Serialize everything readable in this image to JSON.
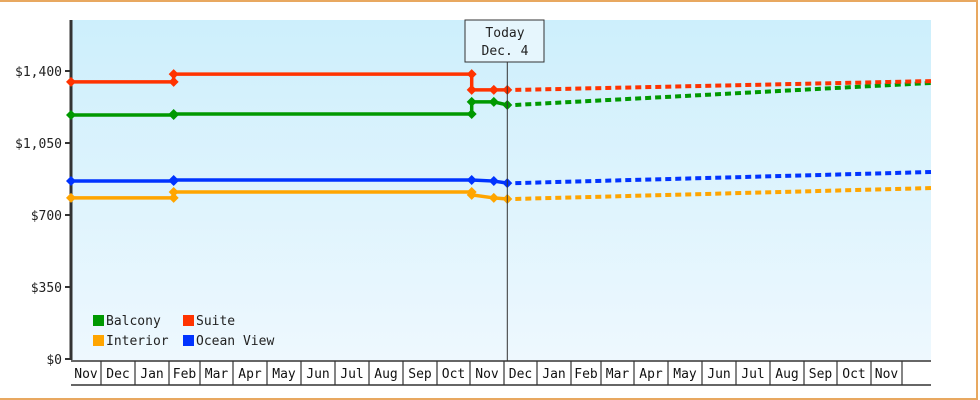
{
  "chart_data": {
    "type": "line",
    "title": "",
    "xlabel": "",
    "ylabel": "",
    "ylim": [
      0,
      1700
    ],
    "y_ticks": [
      {
        "value": 0,
        "label": "$0"
      },
      {
        "value": 350,
        "label": "$350"
      },
      {
        "value": 700,
        "label": "$700"
      },
      {
        "value": 1050,
        "label": "$1,050"
      },
      {
        "value": 1400,
        "label": "$1,400"
      }
    ],
    "x_months": [
      "Nov",
      "Dec",
      "Jan",
      "Feb",
      "Mar",
      "Apr",
      "May",
      "Jun",
      "Jul",
      "Aug",
      "Sep",
      "Oct",
      "Nov",
      "Dec",
      "Jan",
      "Feb",
      "Mar",
      "Apr",
      "May",
      "Jun",
      "Jul",
      "Aug",
      "Sep",
      "Oct",
      "Nov"
    ],
    "today_marker": {
      "line1": "Today",
      "line2": "Dec. 4",
      "month_index": 13.1
    },
    "legend_position": "lower-left",
    "grid": false,
    "series": [
      {
        "name": "Balcony",
        "color": "#009900",
        "historical": [
          [
            0,
            1186
          ],
          [
            3.15,
            1186
          ],
          [
            3.15,
            1191
          ],
          [
            12.05,
            1191
          ],
          [
            12.05,
            1250
          ],
          [
            12.7,
            1250
          ],
          [
            13.1,
            1235
          ]
        ],
        "projected": [
          [
            13.1,
            1235
          ],
          [
            25.8,
            1342
          ]
        ]
      },
      {
        "name": "Suite",
        "color": "#ff3300",
        "historical": [
          [
            0,
            1347
          ],
          [
            3.15,
            1347
          ],
          [
            3.15,
            1385
          ],
          [
            12.05,
            1385
          ],
          [
            12.05,
            1308
          ],
          [
            12.7,
            1308
          ],
          [
            13.1,
            1308
          ]
        ],
        "projected": [
          [
            13.1,
            1308
          ],
          [
            25.8,
            1351
          ]
        ]
      },
      {
        "name": "Interior",
        "color": "#ffa500",
        "historical": [
          [
            0,
            783
          ],
          [
            3.15,
            783
          ],
          [
            3.15,
            812
          ],
          [
            12.05,
            812
          ],
          [
            12.05,
            798
          ],
          [
            12.7,
            783
          ],
          [
            13.1,
            778
          ]
        ],
        "projected": [
          [
            13.1,
            778
          ],
          [
            25.8,
            831
          ]
        ]
      },
      {
        "name": "Ocean View",
        "color": "#0033ff",
        "historical": [
          [
            0,
            865
          ],
          [
            3.15,
            865
          ],
          [
            3.15,
            870
          ],
          [
            12.05,
            870
          ],
          [
            12.7,
            865
          ],
          [
            13.1,
            855
          ]
        ],
        "projected": [
          [
            13.1,
            855
          ],
          [
            25.8,
            909
          ]
        ]
      }
    ]
  },
  "legend": [
    {
      "label": "Balcony",
      "color": "#009900"
    },
    {
      "label": "Suite",
      "color": "#ff3300"
    },
    {
      "label": "Interior",
      "color": "#ffa500"
    },
    {
      "label": "Ocean View",
      "color": "#0033ff"
    }
  ]
}
